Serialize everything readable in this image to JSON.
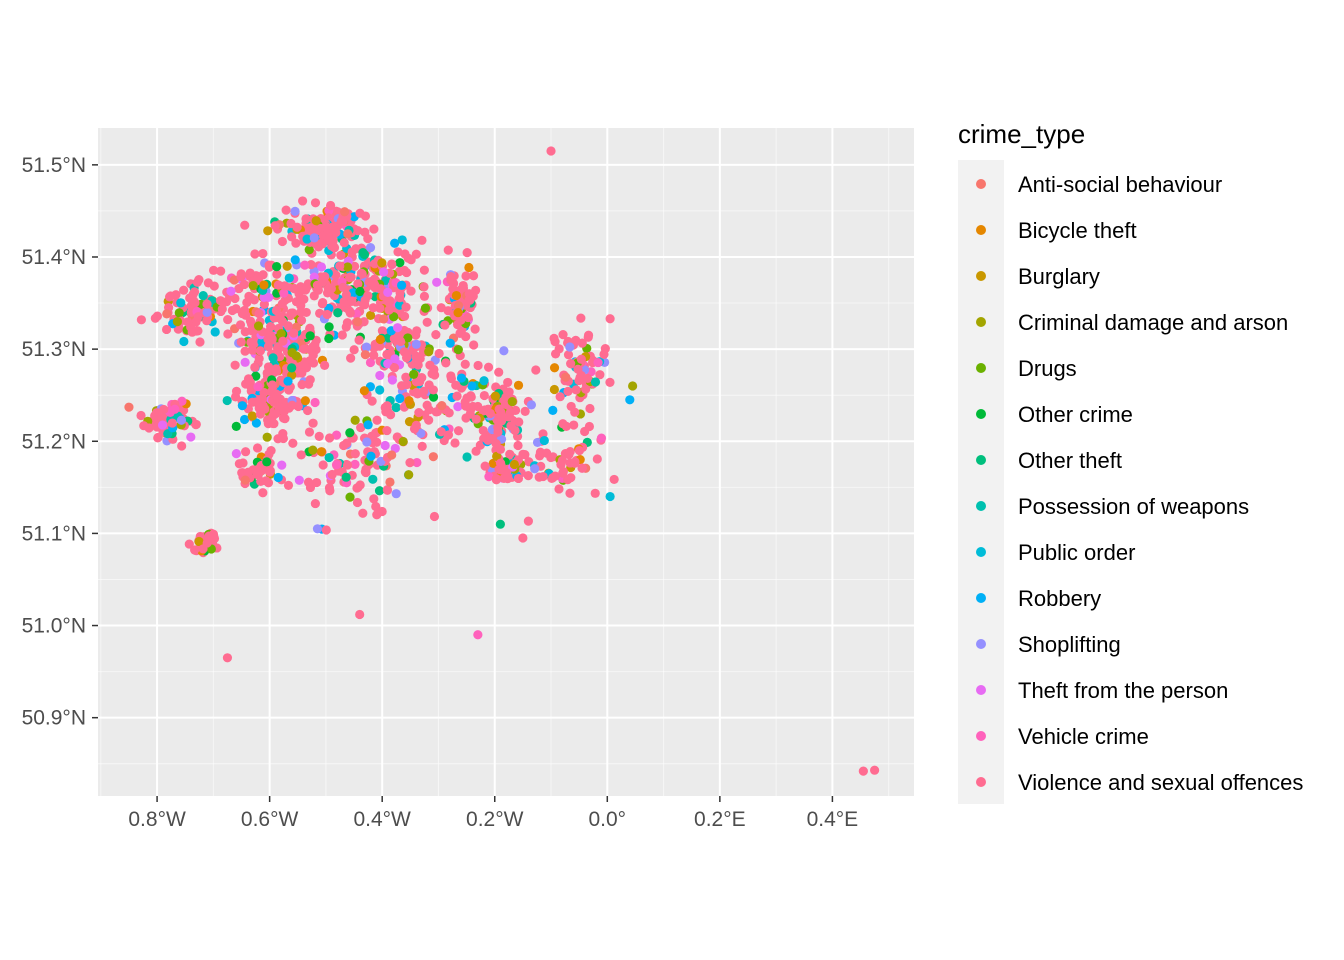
{
  "chart_data": {
    "type": "scatter",
    "title": "",
    "xlabel": "",
    "ylabel": "",
    "xlim": [
      -0.905,
      0.545
    ],
    "ylim": [
      50.815,
      51.54
    ],
    "x_ticks": [
      {
        "value": -0.8,
        "label": "0.8°W"
      },
      {
        "value": -0.6,
        "label": "0.6°W"
      },
      {
        "value": -0.4,
        "label": "0.4°W"
      },
      {
        "value": -0.2,
        "label": "0.2°W"
      },
      {
        "value": 0.0,
        "label": "0.0°"
      },
      {
        "value": 0.2,
        "label": "0.2°E"
      },
      {
        "value": 0.4,
        "label": "0.4°E"
      }
    ],
    "y_ticks": [
      {
        "value": 50.9,
        "label": "50.9°N"
      },
      {
        "value": 51.0,
        "label": "51.0°N"
      },
      {
        "value": 51.1,
        "label": "51.1°N"
      },
      {
        "value": 51.2,
        "label": "51.2°N"
      },
      {
        "value": 51.3,
        "label": "51.3°N"
      },
      {
        "value": 51.4,
        "label": "51.4°N"
      },
      {
        "value": 51.5,
        "label": "51.5°N"
      }
    ],
    "background": "#ebebeb",
    "grid": true,
    "legend": {
      "title": "crime_type",
      "position": "right",
      "entries": [
        {
          "name": "Anti-social behaviour",
          "color": "#F8766D"
        },
        {
          "name": "Bicycle theft",
          "color": "#E58700"
        },
        {
          "name": "Burglary",
          "color": "#C99800"
        },
        {
          "name": "Criminal damage and arson",
          "color": "#A3A500"
        },
        {
          "name": "Drugs",
          "color": "#6BB100"
        },
        {
          "name": "Other crime",
          "color": "#00BA38"
        },
        {
          "name": "Other theft",
          "color": "#00BF7D"
        },
        {
          "name": "Possession of weapons",
          "color": "#00C0AF"
        },
        {
          "name": "Public order",
          "color": "#00BCD8"
        },
        {
          "name": "Robbery",
          "color": "#00B0F6"
        },
        {
          "name": "Shoplifting",
          "color": "#9590FF"
        },
        {
          "name": "Theft from the person",
          "color": "#E76BF3"
        },
        {
          "name": "Vehicle crime",
          "color": "#FF62BC"
        },
        {
          "name": "Violence and sexual offences",
          "color": "#FF6C91"
        }
      ]
    },
    "clusters": [
      {
        "x": -0.44,
        "y": 51.37,
        "rx": 0.12,
        "ry": 0.045,
        "n": 260
      },
      {
        "x": -0.5,
        "y": 51.43,
        "rx": 0.07,
        "ry": 0.02,
        "n": 140
      },
      {
        "x": -0.58,
        "y": 51.31,
        "rx": 0.07,
        "ry": 0.035,
        "n": 160
      },
      {
        "x": -0.72,
        "y": 51.34,
        "rx": 0.07,
        "ry": 0.025,
        "n": 90
      },
      {
        "x": -0.6,
        "y": 51.25,
        "rx": 0.06,
        "ry": 0.03,
        "n": 130
      },
      {
        "x": -0.78,
        "y": 51.22,
        "rx": 0.04,
        "ry": 0.02,
        "n": 70
      },
      {
        "x": -0.19,
        "y": 51.23,
        "rx": 0.04,
        "ry": 0.035,
        "n": 110
      },
      {
        "x": -0.26,
        "y": 51.35,
        "rx": 0.03,
        "ry": 0.03,
        "n": 80
      },
      {
        "x": -0.05,
        "y": 51.28,
        "rx": 0.05,
        "ry": 0.04,
        "n": 70
      },
      {
        "x": -0.38,
        "y": 51.3,
        "rx": 0.06,
        "ry": 0.03,
        "n": 90
      },
      {
        "x": -0.72,
        "y": 51.09,
        "rx": 0.03,
        "ry": 0.01,
        "n": 30
      },
      {
        "x": -0.18,
        "y": 51.17,
        "rx": 0.03,
        "ry": 0.015,
        "n": 50
      },
      {
        "x": -0.62,
        "y": 51.17,
        "rx": 0.04,
        "ry": 0.02,
        "n": 50
      },
      {
        "x": -0.45,
        "y": 51.18,
        "rx": 0.1,
        "ry": 0.06,
        "n": 110
      },
      {
        "x": -0.3,
        "y": 51.25,
        "rx": 0.1,
        "ry": 0.06,
        "n": 120
      },
      {
        "x": -0.08,
        "y": 51.18,
        "rx": 0.06,
        "ry": 0.04,
        "n": 60
      },
      {
        "x": -0.6,
        "y": 51.37,
        "rx": 0.08,
        "ry": 0.03,
        "n": 70
      }
    ],
    "outliers": [
      {
        "x": -0.1,
        "y": 51.515,
        "color": "#FF6C91"
      },
      {
        "x": -0.44,
        "y": 51.012,
        "color": "#FF6C91"
      },
      {
        "x": -0.675,
        "y": 50.965,
        "color": "#FF6C91"
      },
      {
        "x": -0.23,
        "y": 50.99,
        "color": "#FF62BC"
      },
      {
        "x": 0.455,
        "y": 50.842,
        "color": "#FF6C91"
      },
      {
        "x": 0.475,
        "y": 50.843,
        "color": "#FF6C91"
      },
      {
        "x": -0.515,
        "y": 51.105,
        "color": "#9590FF"
      },
      {
        "x": -0.85,
        "y": 51.237,
        "color": "#F8766D"
      },
      {
        "x": 0.045,
        "y": 51.26,
        "color": "#A3A500"
      },
      {
        "x": 0.04,
        "y": 51.245,
        "color": "#00B0F6"
      },
      {
        "x": 0.005,
        "y": 51.333,
        "color": "#FF6C91"
      },
      {
        "x": -0.15,
        "y": 51.095,
        "color": "#FF6C91"
      },
      {
        "x": -0.19,
        "y": 51.11,
        "color": "#00BF7D"
      },
      {
        "x": 0.005,
        "y": 51.14,
        "color": "#00BCD8"
      }
    ]
  }
}
